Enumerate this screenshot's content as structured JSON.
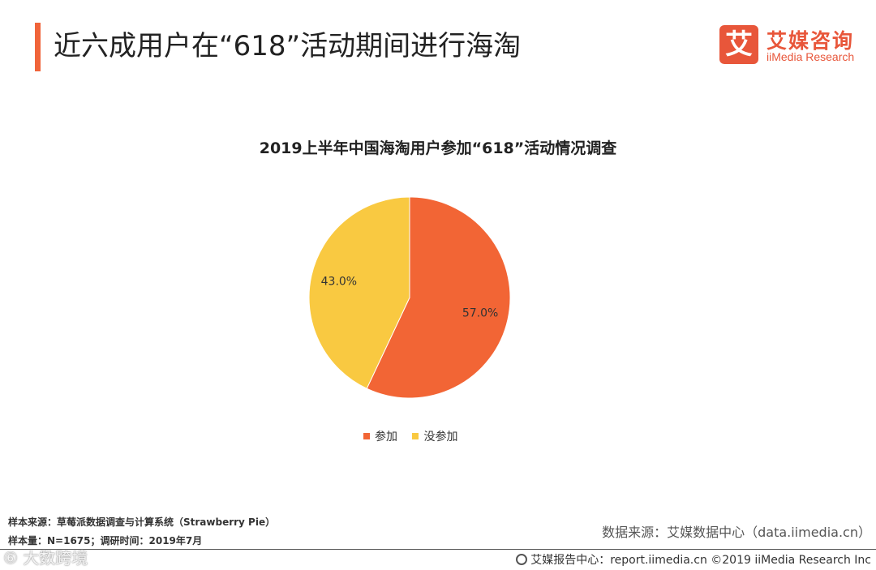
{
  "header": {
    "title": "近六成用户在“618”活动期间进行海淘"
  },
  "logo": {
    "glyph": "艾",
    "name_cn": "艾媒咨询",
    "name_en": "iiMedia Research",
    "color": "#e8563a"
  },
  "chart_data": {
    "type": "pie",
    "title": "2019上半年中国海淘用户参加“618”活动情况调查",
    "slices": [
      {
        "label": "参加",
        "value": 57.0,
        "display": "57.0%",
        "color": "#f26535"
      },
      {
        "label": "没参加",
        "value": 43.0,
        "display": "43.0%",
        "color": "#f9c941"
      }
    ],
    "legend_position": "bottom"
  },
  "notes": {
    "sample_source": "样本来源：草莓派数据调查与计算系统（Strawberry  Pie）",
    "sample_size": "样本量：N=1675；调研时间：2019年7月",
    "data_source": "数据来源：艾媒数据中心（data.iimedia.cn）"
  },
  "footer": {
    "text": "艾媒报告中心：report.iimedia.cn  ©2019  iiMedia Research  Inc",
    "icon": "globe-icon"
  },
  "watermark": {
    "text": "⑥ 大数跨境"
  }
}
